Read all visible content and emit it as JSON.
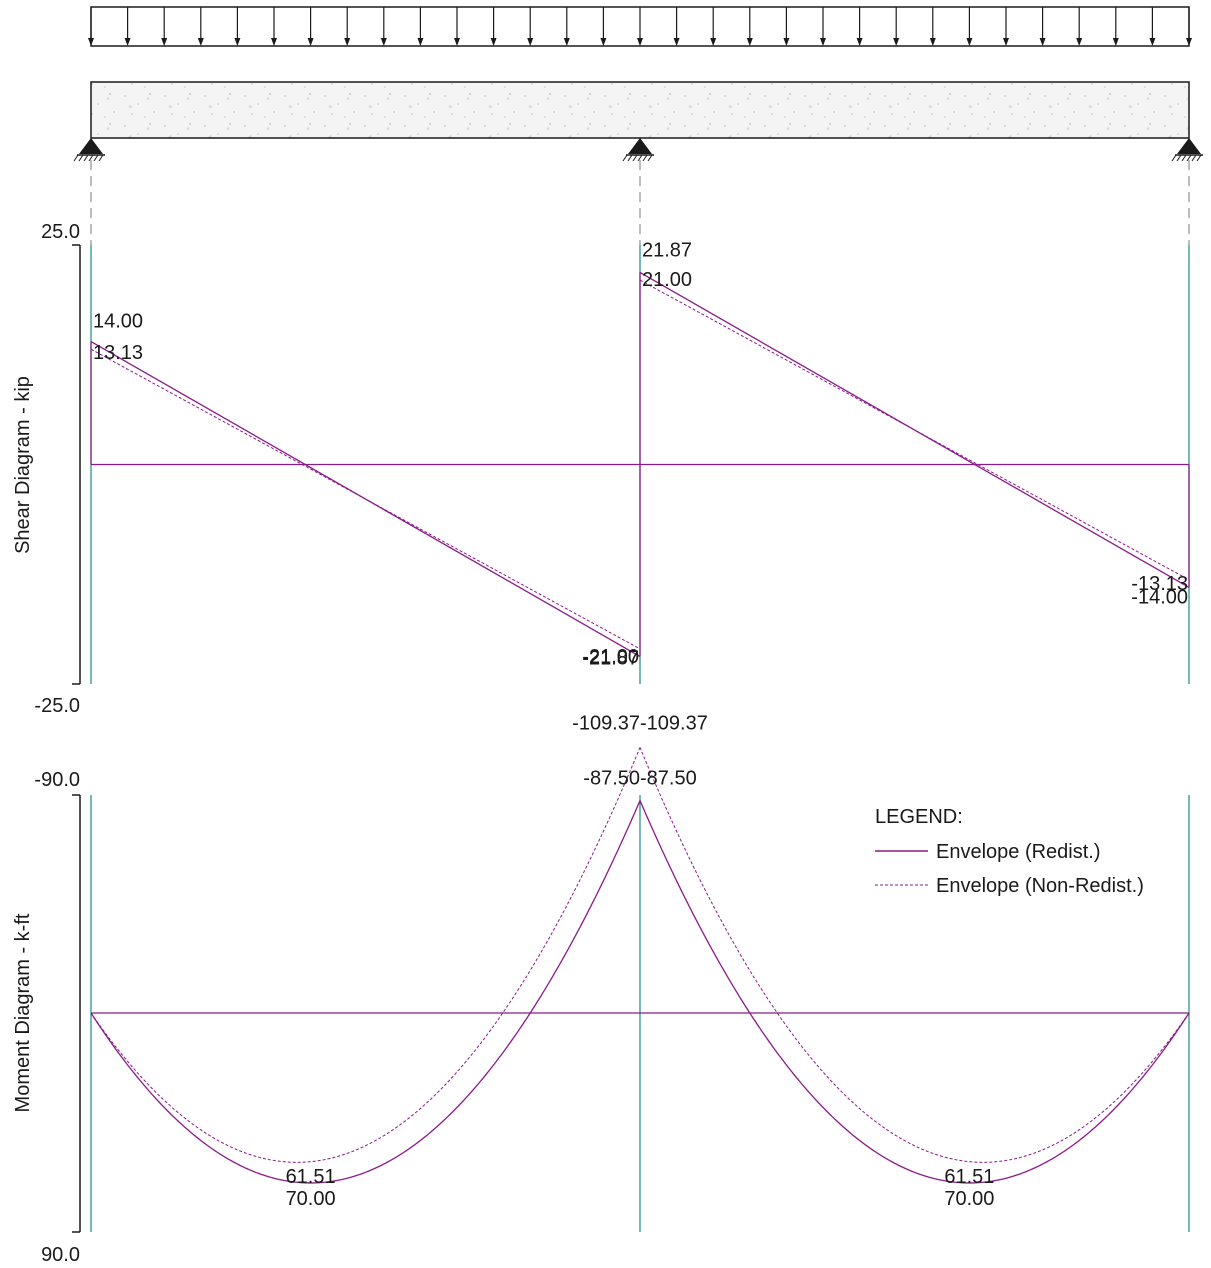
{
  "colors": {
    "envelope": "#8b1a8b",
    "support_line": "#1a8a8a",
    "axis": "#1a1a1a",
    "beam_fill": "#f0f0f0"
  },
  "legend": {
    "title": "LEGEND:",
    "redist": "Envelope (Redist.)",
    "nonredist": "Envelope (Non-Redist.)"
  },
  "chart_data": [
    {
      "type": "line",
      "ylabel": "Shear Diagram - kip",
      "ylim": [
        25.0,
        -25.0
      ],
      "tick_labels": [
        "25.0",
        "-25.0"
      ],
      "span_positions": [
        0,
        1,
        2
      ],
      "series": [
        {
          "name": "Envelope (Redist.)",
          "style": "solid",
          "points": [
            [
              0,
              14.0
            ],
            [
              1,
              -21.87
            ],
            [
              1,
              21.87
            ],
            [
              2,
              -14.0
            ]
          ]
        },
        {
          "name": "Envelope (Non-Redist.)",
          "style": "dashed",
          "points": [
            [
              0,
              13.13
            ],
            [
              1,
              -21.0
            ],
            [
              1,
              21.0
            ],
            [
              2,
              -13.13
            ]
          ]
        }
      ],
      "annotations": [
        {
          "text": "14.00",
          "x": 0,
          "y": 14.0,
          "anchor": "start",
          "dy": -14
        },
        {
          "text": "13.13",
          "x": 0,
          "y": 13.13,
          "anchor": "start",
          "dy": 10
        },
        {
          "text": "21.87",
          "x": 1,
          "y": 21.87,
          "anchor": "start",
          "dy": -16
        },
        {
          "text": "21.00",
          "x": 1,
          "y": 21.0,
          "anchor": "start",
          "dy": 6
        },
        {
          "text": "-21.00",
          "x": 1,
          "y": -21.0,
          "anchor": "end",
          "dy": 14
        },
        {
          "text": "-21.87",
          "x": 1,
          "y": -21.87,
          "anchor": "end",
          "dy": 8
        },
        {
          "text": "-13.13",
          "x": 2,
          "y": -13.13,
          "anchor": "end",
          "dy": 10
        },
        {
          "text": "-14.00",
          "x": 2,
          "y": -14.0,
          "anchor": "end",
          "dy": 16
        }
      ]
    },
    {
      "type": "line",
      "ylabel": "Moment Diagram - k-ft",
      "ylim": [
        -90.0,
        90.0
      ],
      "tick_labels": [
        "-90.0",
        "90.0"
      ],
      "span_positions": [
        0,
        1,
        2
      ],
      "series": [
        {
          "name": "Envelope (Redist.)",
          "style": "solid",
          "peak_values": {
            "span_max": 70.0,
            "support_min": -87.5
          }
        },
        {
          "name": "Envelope (Non-Redist.)",
          "style": "dashed",
          "peak_values": {
            "span_max": 61.51,
            "support_min": -109.37
          }
        }
      ],
      "annotations": [
        {
          "text": "-109.37-109.37",
          "x": 1,
          "y": -109.37,
          "anchor": "middle",
          "dy": -18
        },
        {
          "text": "-87.50-87.50",
          "x": 1,
          "y": -87.5,
          "anchor": "middle",
          "dy": -16
        },
        {
          "text": "61.51",
          "x": 0.4,
          "y": 70.0,
          "anchor": "middle",
          "dy": 0
        },
        {
          "text": "70.00",
          "x": 0.4,
          "y": 70.0,
          "anchor": "middle",
          "dy": 22
        },
        {
          "text": "61.51",
          "x": 1.6,
          "y": 70.0,
          "anchor": "middle",
          "dy": 0
        },
        {
          "text": "70.00",
          "x": 1.6,
          "y": 70.0,
          "anchor": "middle",
          "dy": 22
        }
      ]
    }
  ]
}
